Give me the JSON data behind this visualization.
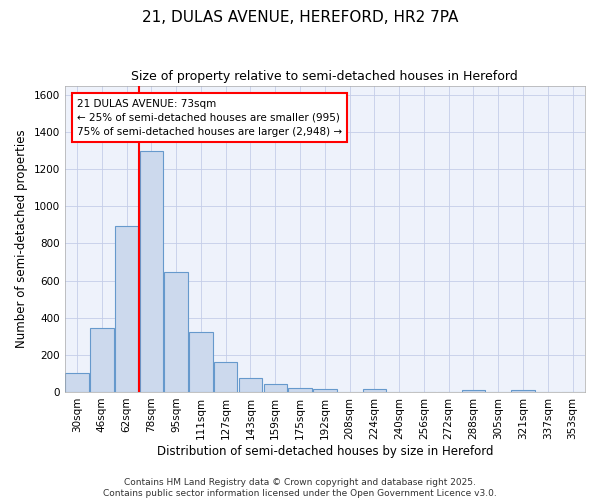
{
  "title": "21, DULAS AVENUE, HEREFORD, HR2 7PA",
  "subtitle": "Size of property relative to semi-detached houses in Hereford",
  "xlabel": "Distribution of semi-detached houses by size in Hereford",
  "ylabel": "Number of semi-detached properties",
  "footer_line1": "Contains HM Land Registry data © Crown copyright and database right 2025.",
  "footer_line2": "Contains public sector information licensed under the Open Government Licence v3.0.",
  "annotation_line1": "21 DULAS AVENUE: 73sqm",
  "annotation_line2": "← 25% of semi-detached houses are smaller (995)",
  "annotation_line3": "75% of semi-detached houses are larger (2,948) →",
  "bar_labels": [
    "30sqm",
    "46sqm",
    "62sqm",
    "78sqm",
    "95sqm",
    "111sqm",
    "127sqm",
    "143sqm",
    "159sqm",
    "175sqm",
    "192sqm",
    "208sqm",
    "224sqm",
    "240sqm",
    "256sqm",
    "272sqm",
    "288sqm",
    "305sqm",
    "321sqm",
    "337sqm",
    "353sqm"
  ],
  "bar_values": [
    100,
    345,
    895,
    1295,
    645,
    325,
    160,
    75,
    42,
    22,
    14,
    0,
    18,
    0,
    0,
    0,
    10,
    0,
    12,
    0,
    0
  ],
  "bar_color": "#ccd9ed",
  "bar_edge_color": "#6699cc",
  "ylim": [
    0,
    1650
  ],
  "yticks": [
    0,
    200,
    400,
    600,
    800,
    1000,
    1200,
    1400,
    1600
  ],
  "red_line_index": 3,
  "background_color": "#eef2fb",
  "grid_color": "#c5cde8",
  "title_fontsize": 11,
  "subtitle_fontsize": 9,
  "axis_label_fontsize": 8.5,
  "tick_fontsize": 7.5,
  "annotation_fontsize": 7.5,
  "footer_fontsize": 6.5
}
